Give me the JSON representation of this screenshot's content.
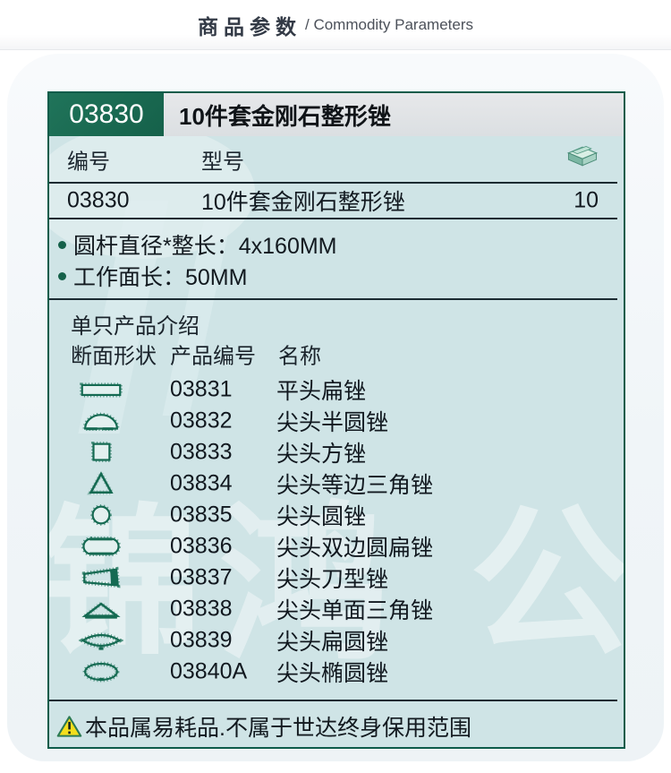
{
  "header": {
    "title_zh": "商品参数",
    "title_en": "/ Commodity Parameters"
  },
  "product": {
    "code": "03830",
    "title": "10件套金刚石整形锉",
    "model_table": {
      "col_code": "编号",
      "col_model": "型号",
      "qty_icon": "box-icon",
      "row": {
        "code": "03830",
        "model": "10件套金刚石整形锉",
        "qty": "10"
      }
    },
    "specs": [
      "圆杆直径*整长：4x160MM",
      "工作面长：50MM"
    ],
    "items_section": {
      "title": "单只产品介绍",
      "col_shape": "断面形状",
      "col_code": "产品编号",
      "col_name": "名称",
      "items": [
        {
          "shape": "flat",
          "code": "03831",
          "name": "平头扁锉"
        },
        {
          "shape": "half-round",
          "code": "03832",
          "name": "尖头半圆锉"
        },
        {
          "shape": "square",
          "code": "03833",
          "name": "尖头方锉"
        },
        {
          "shape": "triangle",
          "code": "03834",
          "name": "尖头等边三角锉"
        },
        {
          "shape": "round",
          "code": "03835",
          "name": "尖头圆锉"
        },
        {
          "shape": "stadium",
          "code": "03836",
          "name": "尖头双边圆扁锉"
        },
        {
          "shape": "knife",
          "code": "03837",
          "name": "尖头刀型锉"
        },
        {
          "shape": "flat-triangle",
          "code": "03838",
          "name": "尖头单面三角锉"
        },
        {
          "shape": "lens",
          "code": "03839",
          "name": "尖头扁圆锉"
        },
        {
          "shape": "oval",
          "code": "03840A",
          "name": "尖头椭圆锉"
        }
      ]
    },
    "warning": "本品属易耗品.不属于世达终身保用范围"
  },
  "watermark": {
    "chars": [
      "锦",
      "鸿",
      "公"
    ]
  },
  "colors": {
    "brand_green": "#15614a",
    "panel_bg": "#cfe4e6",
    "panel_border": "#0e5c4a",
    "divider": "#1c2b32",
    "warning_yellow": "#f4de1c",
    "icon_teal": "#156a52"
  }
}
